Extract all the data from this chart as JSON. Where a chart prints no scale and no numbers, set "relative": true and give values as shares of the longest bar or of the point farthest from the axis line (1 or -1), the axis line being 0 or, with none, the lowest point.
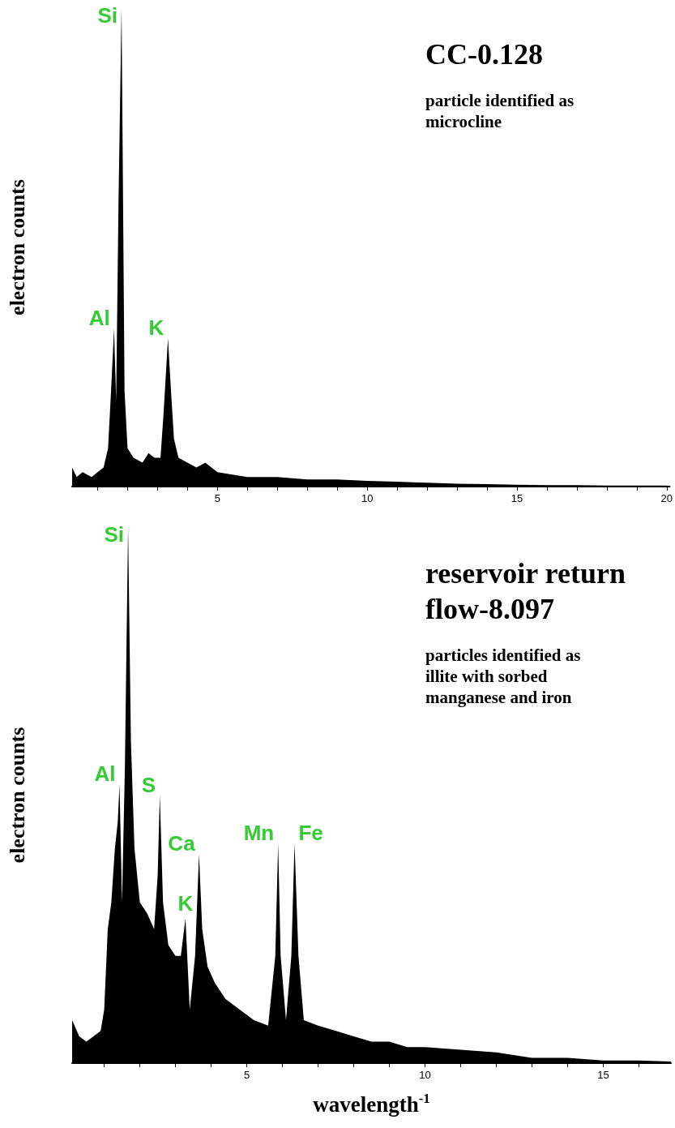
{
  "chart_data": [
    {
      "type": "area",
      "title": "CC-0.128",
      "subtitle": "particle identified as microcline",
      "ylabel": "electron counts",
      "relative": true,
      "x": [
        0.15,
        0.3,
        0.5,
        0.8,
        1.0,
        1.2,
        1.35,
        1.45,
        1.55,
        1.62,
        1.7,
        1.8,
        1.9,
        2.0,
        2.2,
        2.5,
        2.7,
        2.9,
        3.1,
        3.2,
        3.35,
        3.45,
        3.55,
        3.7,
        4.0,
        4.3,
        4.6,
        5.0,
        5.5,
        6,
        7,
        8,
        9,
        10,
        11,
        12,
        13,
        14,
        15,
        16,
        17,
        18,
        20
      ],
      "series": [
        {
          "color": "#000000",
          "values": [
            0.04,
            0.02,
            0.03,
            0.02,
            0.03,
            0.04,
            0.08,
            0.2,
            0.33,
            0.18,
            0.6,
            1.0,
            0.2,
            0.08,
            0.06,
            0.05,
            0.07,
            0.06,
            0.06,
            0.15,
            0.31,
            0.2,
            0.1,
            0.06,
            0.05,
            0.04,
            0.05,
            0.03,
            0.025,
            0.02,
            0.02,
            0.015,
            0.015,
            0.012,
            0.01,
            0.008,
            0.006,
            0.005,
            0.004,
            0.003,
            0.003,
            0.002,
            0.002
          ]
        }
      ],
      "annotations": [
        {
          "text": "Al",
          "x": 1.55,
          "y": 0.33
        },
        {
          "text": "Si",
          "x": 1.8,
          "y": 1.0
        },
        {
          "text": "K",
          "x": 3.35,
          "y": 0.31
        }
      ],
      "xlim": [
        0.15,
        20.1
      ],
      "xticks": [
        {
          "value": 1,
          "label": null
        },
        {
          "value": 2,
          "label": null
        },
        {
          "value": 3,
          "label": null
        },
        {
          "value": 4,
          "label": null
        },
        5,
        {
          "value": 6,
          "label": null
        },
        {
          "value": 7,
          "label": null
        },
        {
          "value": 8,
          "label": null
        },
        {
          "value": 9,
          "label": null
        },
        10,
        {
          "value": 11,
          "label": null
        },
        {
          "value": 12,
          "label": null
        },
        {
          "value": 13,
          "label": null
        },
        {
          "value": 14,
          "label": null
        },
        15,
        {
          "value": 16,
          "label": null
        },
        {
          "value": 17,
          "label": null
        },
        {
          "value": 18,
          "label": null
        },
        {
          "value": 19,
          "label": null
        },
        20
      ]
    },
    {
      "type": "area",
      "title": "reservoir return flow-8.097",
      "subtitle": "particles identified as illite with sorbed manganese and iron",
      "ylabel": "electron counts",
      "xlabel": "wavelength$^{-1}$",
      "relative": true,
      "x": [
        0.1,
        0.3,
        0.5,
        0.7,
        0.9,
        1.0,
        1.1,
        1.2,
        1.3,
        1.38,
        1.43,
        1.5,
        1.58,
        1.67,
        1.75,
        1.85,
        2.0,
        2.2,
        2.4,
        2.5,
        2.56,
        2.65,
        2.8,
        3.0,
        3.15,
        3.28,
        3.4,
        3.55,
        3.66,
        3.75,
        3.9,
        4.1,
        4.4,
        4.8,
        5.2,
        5.6,
        5.8,
        5.88,
        5.95,
        6.1,
        6.25,
        6.34,
        6.45,
        6.6,
        7.0,
        7.5,
        8,
        8.5,
        9,
        9.5,
        10,
        11,
        12,
        13,
        14,
        15,
        16,
        16.9
      ],
      "series": [
        {
          "color": "#000000",
          "values": [
            0.08,
            0.05,
            0.04,
            0.05,
            0.06,
            0.1,
            0.25,
            0.3,
            0.4,
            0.45,
            0.52,
            0.3,
            0.55,
            1.0,
            0.6,
            0.4,
            0.3,
            0.28,
            0.25,
            0.35,
            0.5,
            0.3,
            0.22,
            0.2,
            0.2,
            0.27,
            0.1,
            0.2,
            0.39,
            0.25,
            0.18,
            0.15,
            0.12,
            0.1,
            0.08,
            0.07,
            0.2,
            0.41,
            0.2,
            0.08,
            0.2,
            0.41,
            0.2,
            0.08,
            0.07,
            0.06,
            0.05,
            0.04,
            0.04,
            0.03,
            0.03,
            0.025,
            0.02,
            0.01,
            0.01,
            0.005,
            0.005,
            0.003
          ]
        }
      ],
      "annotations": [
        {
          "text": "Al",
          "x": 1.43,
          "y": 0.52
        },
        {
          "text": "Si",
          "x": 1.67,
          "y": 1.0
        },
        {
          "text": "S",
          "x": 2.56,
          "y": 0.5
        },
        {
          "text": "K",
          "x": 3.28,
          "y": 0.27
        },
        {
          "text": "Ca",
          "x": 3.66,
          "y": 0.39
        },
        {
          "text": "Mn",
          "x": 5.88,
          "y": 0.41
        },
        {
          "text": "Fe",
          "x": 6.34,
          "y": 0.41
        }
      ],
      "xlim": [
        0.1,
        16.9
      ],
      "xticks": [
        {
          "value": 1,
          "label": null
        },
        {
          "value": 2,
          "label": null
        },
        {
          "value": 3,
          "label": null
        },
        {
          "value": 4,
          "label": null
        },
        5,
        {
          "value": 6,
          "label": null
        },
        {
          "value": 7,
          "label": null
        },
        {
          "value": 8,
          "label": null
        },
        {
          "value": 9,
          "label": null
        },
        10,
        {
          "value": 11,
          "label": null
        },
        {
          "value": 12,
          "label": null
        },
        {
          "value": 13,
          "label": null
        },
        {
          "value": 14,
          "label": null
        },
        15,
        {
          "value": 16,
          "label": null
        }
      ]
    }
  ]
}
